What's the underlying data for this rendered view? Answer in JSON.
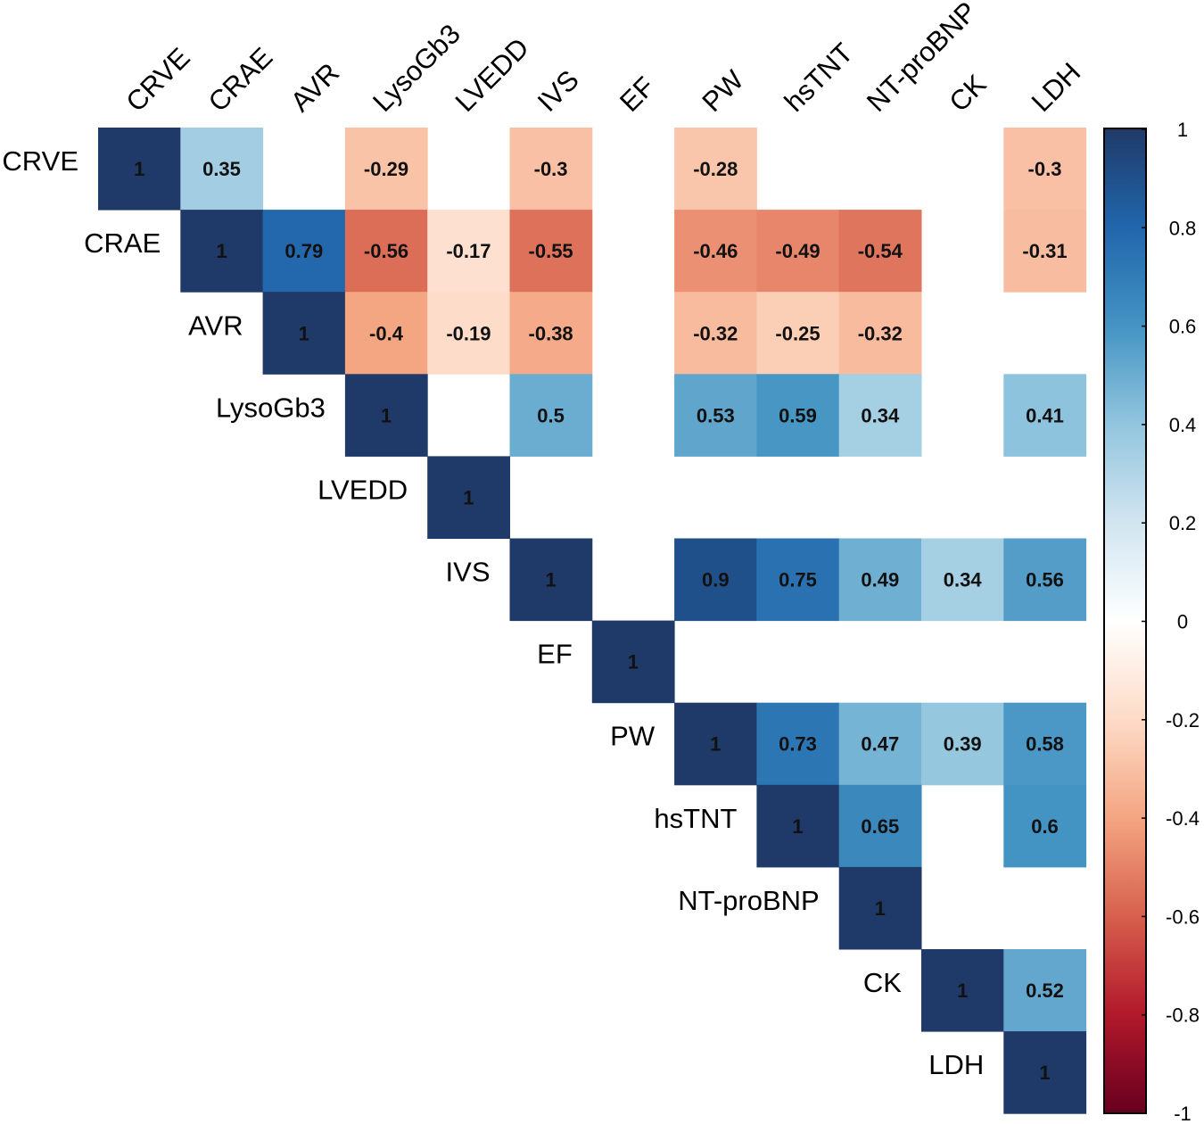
{
  "chart_data": {
    "type": "heatmap",
    "variables": [
      "CRVE",
      "CRAE",
      "AVR",
      "LysoGb3",
      "LVEDD",
      "IVS",
      "EF",
      "PW",
      "hsTNT",
      "NT-proBNP",
      "CK",
      "LDH"
    ],
    "matrix": [
      [
        1,
        0.35,
        null,
        -0.29,
        null,
        -0.3,
        null,
        -0.28,
        null,
        null,
        null,
        -0.3
      ],
      [
        null,
        1,
        0.79,
        -0.56,
        -0.17,
        -0.55,
        null,
        -0.46,
        -0.49,
        -0.54,
        null,
        -0.31
      ],
      [
        null,
        null,
        1,
        -0.4,
        -0.19,
        -0.38,
        null,
        -0.32,
        -0.25,
        -0.32,
        null,
        null
      ],
      [
        null,
        null,
        null,
        1,
        null,
        0.5,
        null,
        0.53,
        0.59,
        0.34,
        null,
        0.41
      ],
      [
        null,
        null,
        null,
        null,
        1,
        null,
        null,
        null,
        null,
        null,
        null,
        null
      ],
      [
        null,
        null,
        null,
        null,
        null,
        1,
        null,
        0.9,
        0.75,
        0.49,
        0.34,
        0.56
      ],
      [
        null,
        null,
        null,
        null,
        null,
        null,
        1,
        null,
        null,
        null,
        null,
        null
      ],
      [
        null,
        null,
        null,
        null,
        null,
        null,
        null,
        1,
        0.73,
        0.47,
        0.39,
        0.58
      ],
      [
        null,
        null,
        null,
        null,
        null,
        null,
        null,
        null,
        1,
        0.65,
        null,
        0.6
      ],
      [
        null,
        null,
        null,
        null,
        null,
        null,
        null,
        null,
        null,
        1,
        null,
        null
      ],
      [
        null,
        null,
        null,
        null,
        null,
        null,
        null,
        null,
        null,
        null,
        1,
        0.52
      ],
      [
        null,
        null,
        null,
        null,
        null,
        null,
        null,
        null,
        null,
        null,
        null,
        1
      ]
    ],
    "colorbar": {
      "range": [
        -1,
        1
      ],
      "ticks": [
        "1",
        "0.8",
        "0.6",
        "0.4",
        "0.2",
        "0",
        "-0.2",
        "-0.4",
        "-0.6",
        "-0.8",
        "-1"
      ],
      "tick_values": [
        1,
        0.8,
        0.6,
        0.4,
        0.2,
        0,
        -0.2,
        -0.4,
        -0.6,
        -0.8,
        -1
      ],
      "colors": [
        "#67001f",
        "#b2182b",
        "#d6604d",
        "#f4a582",
        "#fddbc7",
        "#ffffff",
        "#d1e5f0",
        "#92c5de",
        "#4393c3",
        "#2166ac",
        "#1f3a68"
      ]
    },
    "title": "",
    "xlabel": "",
    "ylabel": ""
  }
}
